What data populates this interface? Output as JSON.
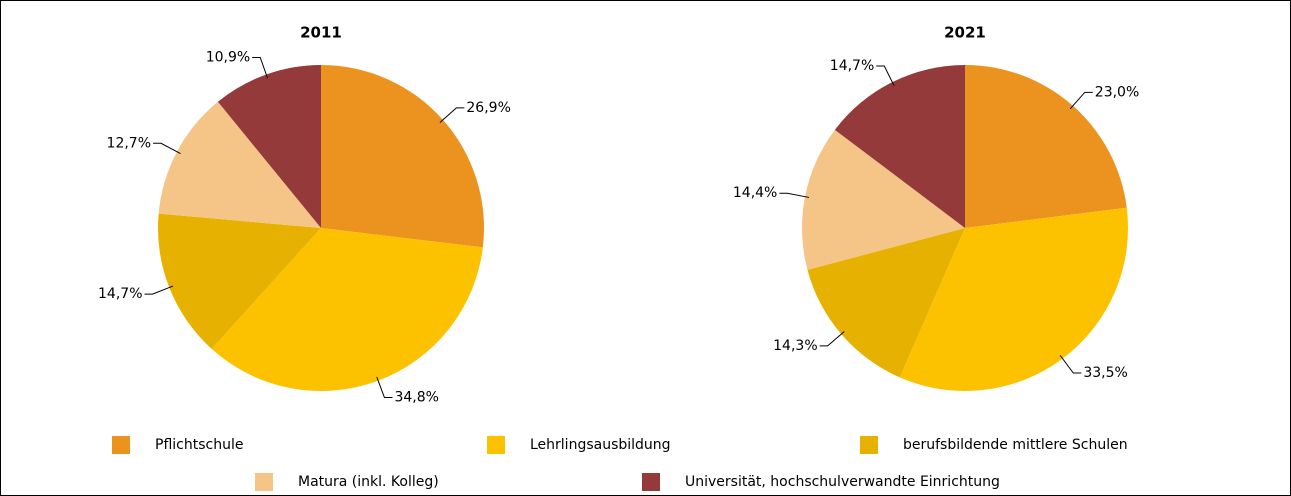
{
  "legend": {
    "categories": [
      "Pflichtschule",
      "Lehrlingsausbildung",
      "berufsbildende mittlere Schulen",
      "Matura (inkl. Kolleg)",
      "Universität, hochschulverwandte Einrichtung"
    ],
    "colors": [
      "#eb931e",
      "#fcc200",
      "#e6b100",
      "#f5c487",
      "#943a3b"
    ]
  },
  "chart_data": [
    {
      "type": "pie",
      "title": "2011",
      "values": [
        26.9,
        34.8,
        14.7,
        12.7,
        10.9
      ],
      "value_labels": [
        "26,9%",
        "34,8%",
        "14,7%",
        "12,7%",
        "10,9%"
      ]
    },
    {
      "type": "pie",
      "title": "2021",
      "values": [
        23.0,
        33.5,
        14.3,
        14.4,
        14.7
      ],
      "value_labels": [
        "23,0%",
        "33,5%",
        "14,3%",
        "14,4%",
        "14,7%"
      ]
    }
  ]
}
